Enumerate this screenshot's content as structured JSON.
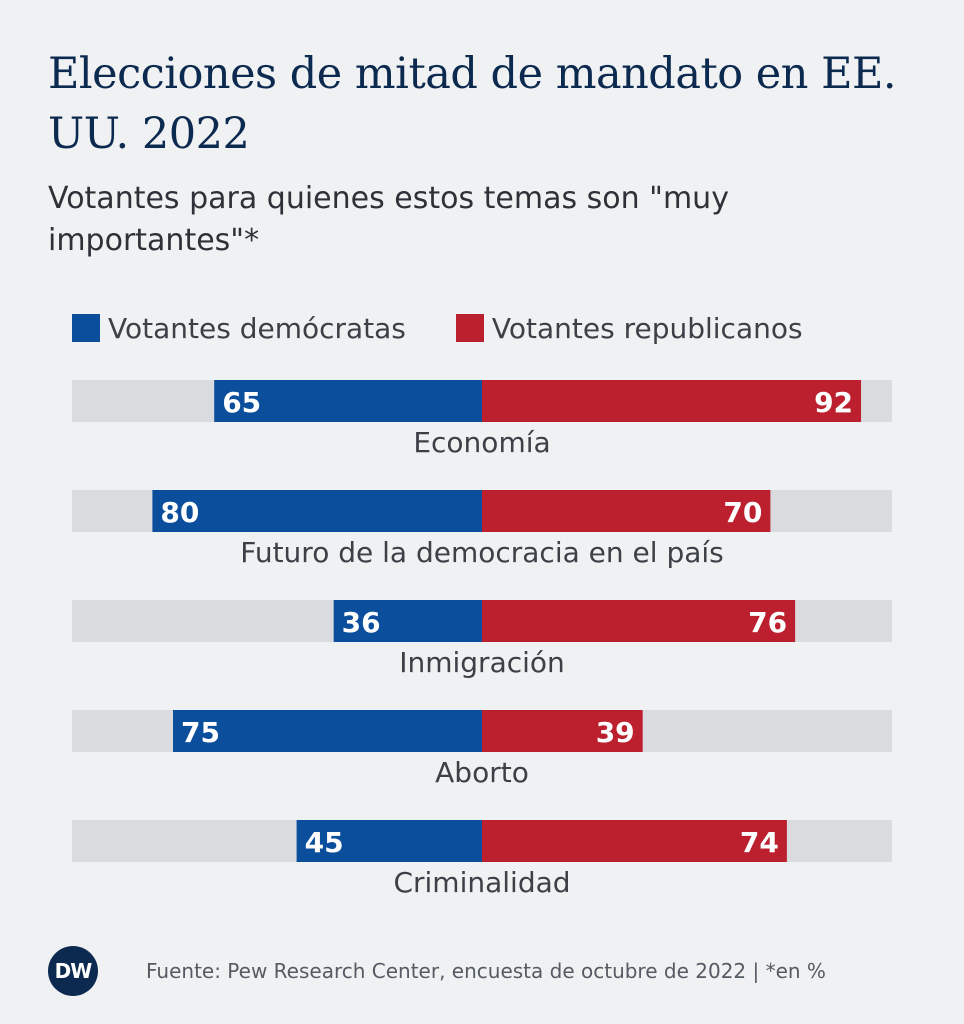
{
  "header": {
    "title": "Elecciones de mitad de mandato en EE. UU. 2022",
    "subtitle": "Votantes para quienes estos temas son \"muy importantes\"*"
  },
  "legend": {
    "democrats_label": "Votantes demócratas",
    "republicans_label": "Votantes republicanos"
  },
  "footer": {
    "logo_text": "DW",
    "source": "Fuente: Pew Research Center, encuesta de octubre de 2022 | *en %"
  },
  "colors": {
    "background": "#f0f1f3",
    "democrats": "#0b4f9c",
    "republicans": "#bc202f",
    "track": "#d9dbde",
    "title": "#0c2a4f"
  },
  "chart_data": {
    "type": "bar",
    "orientation": "diverging-horizontal",
    "categories": [
      "Economía",
      "Futuro de la democracia en el país",
      "Inmigración",
      "Aborto",
      "Criminalidad"
    ],
    "series": [
      {
        "name": "Votantes demócratas",
        "values": [
          65,
          80,
          36,
          75,
          45
        ]
      },
      {
        "name": "Votantes republicanos",
        "values": [
          92,
          70,
          76,
          39,
          74
        ]
      }
    ],
    "unit": "%",
    "xlim": [
      -100,
      100
    ],
    "title": "Elecciones de mitad de mandato en EE. UU. 2022",
    "legend": "top-left"
  }
}
